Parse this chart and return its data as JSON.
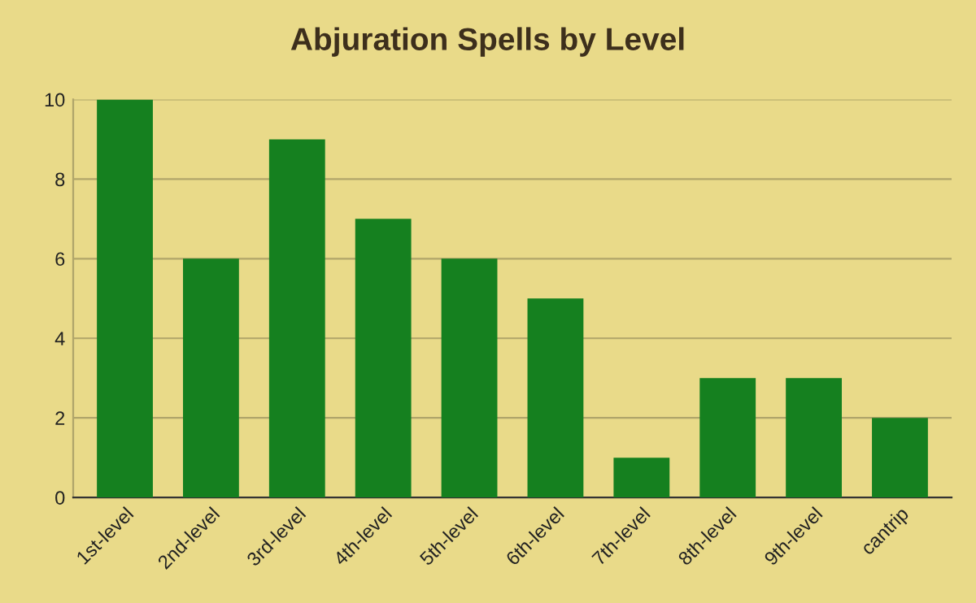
{
  "chart_data": {
    "type": "bar",
    "title": "Abjuration Spells by Level",
    "categories": [
      "1st-level",
      "2nd-level",
      "3rd-level",
      "4th-level",
      "5th-level",
      "6th-level",
      "7th-level",
      "8th-level",
      "9th-level",
      "cantrip"
    ],
    "values": [
      10,
      6,
      9,
      7,
      6,
      5,
      1,
      3,
      3,
      2
    ],
    "color": "#15801f",
    "ylim": [
      0,
      10
    ],
    "yticks": [
      0,
      2,
      4,
      6,
      8,
      10
    ],
    "grid": "y",
    "legend": false
  }
}
